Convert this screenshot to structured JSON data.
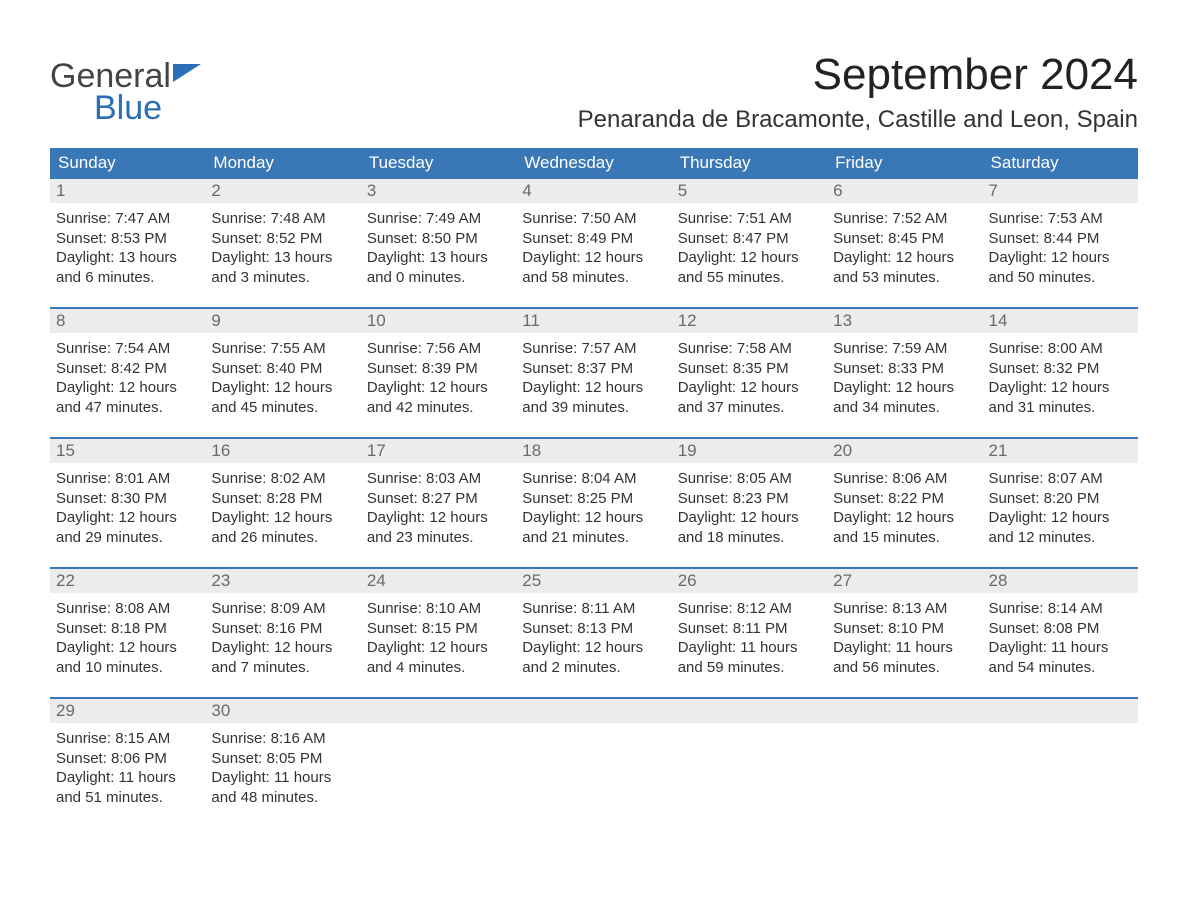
{
  "brand": {
    "line1": "General",
    "line2": "Blue"
  },
  "title": "September 2024",
  "location": "Penaranda de Bracamonte, Castille and Leon, Spain",
  "colors": {
    "header_bg": "#3a77b7",
    "header_text": "#ffffff",
    "daynum_bg": "#ececec",
    "daynum_text": "#6a6a6a",
    "body_text": "#333333",
    "week_border": "#3a77b7",
    "brand_blue": "#2a6fb5",
    "page_bg": "#ffffff"
  },
  "typography": {
    "title_fontsize": 44,
    "location_fontsize": 24,
    "weekday_fontsize": 17,
    "daynum_fontsize": 17,
    "body_fontsize": 15,
    "font_family": "Arial"
  },
  "weekdays": [
    "Sunday",
    "Monday",
    "Tuesday",
    "Wednesday",
    "Thursday",
    "Friday",
    "Saturday"
  ],
  "weeks": [
    [
      {
        "num": "1",
        "sunrise": "Sunrise: 7:47 AM",
        "sunset": "Sunset: 8:53 PM",
        "day1": "Daylight: 13 hours",
        "day2": "and 6 minutes."
      },
      {
        "num": "2",
        "sunrise": "Sunrise: 7:48 AM",
        "sunset": "Sunset: 8:52 PM",
        "day1": "Daylight: 13 hours",
        "day2": "and 3 minutes."
      },
      {
        "num": "3",
        "sunrise": "Sunrise: 7:49 AM",
        "sunset": "Sunset: 8:50 PM",
        "day1": "Daylight: 13 hours",
        "day2": "and 0 minutes."
      },
      {
        "num": "4",
        "sunrise": "Sunrise: 7:50 AM",
        "sunset": "Sunset: 8:49 PM",
        "day1": "Daylight: 12 hours",
        "day2": "and 58 minutes."
      },
      {
        "num": "5",
        "sunrise": "Sunrise: 7:51 AM",
        "sunset": "Sunset: 8:47 PM",
        "day1": "Daylight: 12 hours",
        "day2": "and 55 minutes."
      },
      {
        "num": "6",
        "sunrise": "Sunrise: 7:52 AM",
        "sunset": "Sunset: 8:45 PM",
        "day1": "Daylight: 12 hours",
        "day2": "and 53 minutes."
      },
      {
        "num": "7",
        "sunrise": "Sunrise: 7:53 AM",
        "sunset": "Sunset: 8:44 PM",
        "day1": "Daylight: 12 hours",
        "day2": "and 50 minutes."
      }
    ],
    [
      {
        "num": "8",
        "sunrise": "Sunrise: 7:54 AM",
        "sunset": "Sunset: 8:42 PM",
        "day1": "Daylight: 12 hours",
        "day2": "and 47 minutes."
      },
      {
        "num": "9",
        "sunrise": "Sunrise: 7:55 AM",
        "sunset": "Sunset: 8:40 PM",
        "day1": "Daylight: 12 hours",
        "day2": "and 45 minutes."
      },
      {
        "num": "10",
        "sunrise": "Sunrise: 7:56 AM",
        "sunset": "Sunset: 8:39 PM",
        "day1": "Daylight: 12 hours",
        "day2": "and 42 minutes."
      },
      {
        "num": "11",
        "sunrise": "Sunrise: 7:57 AM",
        "sunset": "Sunset: 8:37 PM",
        "day1": "Daylight: 12 hours",
        "day2": "and 39 minutes."
      },
      {
        "num": "12",
        "sunrise": "Sunrise: 7:58 AM",
        "sunset": "Sunset: 8:35 PM",
        "day1": "Daylight: 12 hours",
        "day2": "and 37 minutes."
      },
      {
        "num": "13",
        "sunrise": "Sunrise: 7:59 AM",
        "sunset": "Sunset: 8:33 PM",
        "day1": "Daylight: 12 hours",
        "day2": "and 34 minutes."
      },
      {
        "num": "14",
        "sunrise": "Sunrise: 8:00 AM",
        "sunset": "Sunset: 8:32 PM",
        "day1": "Daylight: 12 hours",
        "day2": "and 31 minutes."
      }
    ],
    [
      {
        "num": "15",
        "sunrise": "Sunrise: 8:01 AM",
        "sunset": "Sunset: 8:30 PM",
        "day1": "Daylight: 12 hours",
        "day2": "and 29 minutes."
      },
      {
        "num": "16",
        "sunrise": "Sunrise: 8:02 AM",
        "sunset": "Sunset: 8:28 PM",
        "day1": "Daylight: 12 hours",
        "day2": "and 26 minutes."
      },
      {
        "num": "17",
        "sunrise": "Sunrise: 8:03 AM",
        "sunset": "Sunset: 8:27 PM",
        "day1": "Daylight: 12 hours",
        "day2": "and 23 minutes."
      },
      {
        "num": "18",
        "sunrise": "Sunrise: 8:04 AM",
        "sunset": "Sunset: 8:25 PM",
        "day1": "Daylight: 12 hours",
        "day2": "and 21 minutes."
      },
      {
        "num": "19",
        "sunrise": "Sunrise: 8:05 AM",
        "sunset": "Sunset: 8:23 PM",
        "day1": "Daylight: 12 hours",
        "day2": "and 18 minutes."
      },
      {
        "num": "20",
        "sunrise": "Sunrise: 8:06 AM",
        "sunset": "Sunset: 8:22 PM",
        "day1": "Daylight: 12 hours",
        "day2": "and 15 minutes."
      },
      {
        "num": "21",
        "sunrise": "Sunrise: 8:07 AM",
        "sunset": "Sunset: 8:20 PM",
        "day1": "Daylight: 12 hours",
        "day2": "and 12 minutes."
      }
    ],
    [
      {
        "num": "22",
        "sunrise": "Sunrise: 8:08 AM",
        "sunset": "Sunset: 8:18 PM",
        "day1": "Daylight: 12 hours",
        "day2": "and 10 minutes."
      },
      {
        "num": "23",
        "sunrise": "Sunrise: 8:09 AM",
        "sunset": "Sunset: 8:16 PM",
        "day1": "Daylight: 12 hours",
        "day2": "and 7 minutes."
      },
      {
        "num": "24",
        "sunrise": "Sunrise: 8:10 AM",
        "sunset": "Sunset: 8:15 PM",
        "day1": "Daylight: 12 hours",
        "day2": "and 4 minutes."
      },
      {
        "num": "25",
        "sunrise": "Sunrise: 8:11 AM",
        "sunset": "Sunset: 8:13 PM",
        "day1": "Daylight: 12 hours",
        "day2": "and 2 minutes."
      },
      {
        "num": "26",
        "sunrise": "Sunrise: 8:12 AM",
        "sunset": "Sunset: 8:11 PM",
        "day1": "Daylight: 11 hours",
        "day2": "and 59 minutes."
      },
      {
        "num": "27",
        "sunrise": "Sunrise: 8:13 AM",
        "sunset": "Sunset: 8:10 PM",
        "day1": "Daylight: 11 hours",
        "day2": "and 56 minutes."
      },
      {
        "num": "28",
        "sunrise": "Sunrise: 8:14 AM",
        "sunset": "Sunset: 8:08 PM",
        "day1": "Daylight: 11 hours",
        "day2": "and 54 minutes."
      }
    ],
    [
      {
        "num": "29",
        "sunrise": "Sunrise: 8:15 AM",
        "sunset": "Sunset: 8:06 PM",
        "day1": "Daylight: 11 hours",
        "day2": "and 51 minutes."
      },
      {
        "num": "30",
        "sunrise": "Sunrise: 8:16 AM",
        "sunset": "Sunset: 8:05 PM",
        "day1": "Daylight: 11 hours",
        "day2": "and 48 minutes."
      },
      {
        "num": "",
        "sunrise": "",
        "sunset": "",
        "day1": "",
        "day2": ""
      },
      {
        "num": "",
        "sunrise": "",
        "sunset": "",
        "day1": "",
        "day2": ""
      },
      {
        "num": "",
        "sunrise": "",
        "sunset": "",
        "day1": "",
        "day2": ""
      },
      {
        "num": "",
        "sunrise": "",
        "sunset": "",
        "day1": "",
        "day2": ""
      },
      {
        "num": "",
        "sunrise": "",
        "sunset": "",
        "day1": "",
        "day2": ""
      }
    ]
  ]
}
